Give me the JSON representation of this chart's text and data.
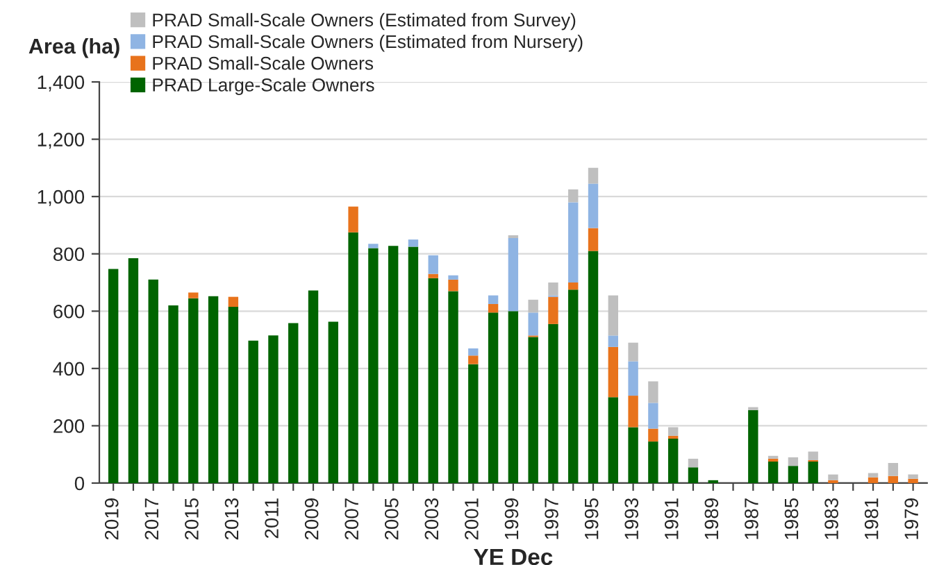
{
  "chart_data": {
    "type": "bar",
    "stacked": true,
    "xlabel": "YE Dec",
    "ylabel": "Area (ha)",
    "categories": [
      "2019",
      null,
      "2017",
      null,
      "2015",
      null,
      "2013",
      null,
      "2011",
      null,
      "2009",
      null,
      "2007",
      null,
      "2005",
      null,
      "2003",
      null,
      "2001",
      null,
      "1999",
      null,
      "1997",
      null,
      "1995",
      null,
      "1993",
      null,
      "1991",
      null,
      "1989",
      null,
      "1987",
      null,
      "1985",
      null,
      "1983",
      null,
      "1981",
      null,
      "1979"
    ],
    "series": [
      {
        "name": "PRAD Large-Scale Owners",
        "color": "#006400",
        "values": [
          747,
          785,
          710,
          620,
          645,
          652,
          615,
          497,
          515,
          558,
          672,
          563,
          875,
          820,
          828,
          825,
          715,
          670,
          415,
          595,
          600,
          510,
          555,
          675,
          810,
          300,
          195,
          145,
          155,
          55,
          10,
          0,
          255,
          75,
          60,
          75,
          0,
          0,
          0,
          0,
          0
        ]
      },
      {
        "name": "PRAD Small-Scale Owners",
        "color": "#e8731c",
        "values": [
          0,
          0,
          0,
          0,
          20,
          0,
          35,
          0,
          0,
          0,
          0,
          0,
          90,
          0,
          0,
          0,
          15,
          40,
          30,
          30,
          0,
          5,
          95,
          25,
          80,
          175,
          110,
          45,
          10,
          0,
          0,
          0,
          0,
          10,
          0,
          5,
          10,
          0,
          20,
          25,
          15
        ]
      },
      {
        "name": "PRAD Small-Scale Owners (Estimated from Nursery)",
        "color": "#8fb4e3",
        "values": [
          0,
          0,
          0,
          0,
          0,
          0,
          0,
          0,
          0,
          0,
          0,
          0,
          0,
          15,
          0,
          25,
          65,
          15,
          25,
          30,
          255,
          80,
          5,
          280,
          155,
          40,
          120,
          90,
          0,
          0,
          0,
          0,
          0,
          0,
          0,
          0,
          0,
          0,
          0,
          0,
          0
        ]
      },
      {
        "name": "PRAD Small-Scale Owners (Estimated from Survey)",
        "color": "#bfbfbf",
        "values": [
          0,
          0,
          0,
          0,
          0,
          0,
          0,
          0,
          0,
          0,
          0,
          0,
          0,
          0,
          0,
          0,
          0,
          0,
          0,
          0,
          10,
          45,
          45,
          45,
          55,
          140,
          65,
          75,
          30,
          30,
          0,
          0,
          10,
          10,
          30,
          30,
          20,
          0,
          15,
          45,
          15
        ]
      }
    ],
    "ylim": [
      0,
      1400
    ],
    "yticks": [
      0,
      {
        "value": 200,
        "label": "200"
      },
      {
        "value": 400,
        "label": "400"
      },
      {
        "value": 600,
        "label": "600"
      },
      {
        "value": 800,
        "label": "800"
      },
      {
        "value": 1000,
        "label": "1,000"
      },
      {
        "value": 1200,
        "label": "1,200"
      },
      {
        "value": 1400,
        "label": "1,400"
      }
    ],
    "grid": "y",
    "legend": "top"
  }
}
